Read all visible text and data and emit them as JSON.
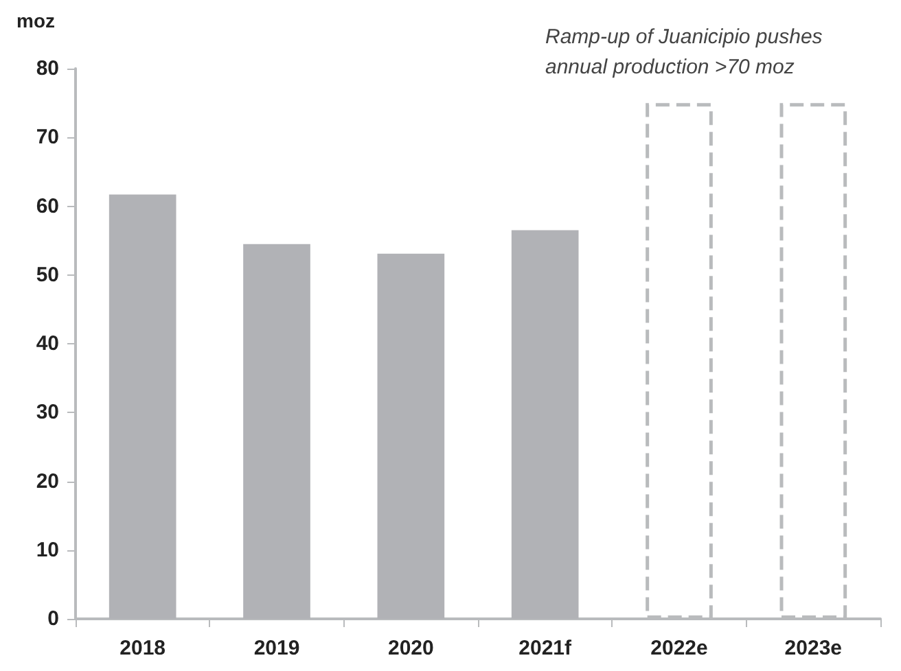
{
  "chart_data": {
    "type": "bar",
    "ylabel": "moz",
    "annotations": [
      "Ramp-up of Juanicipio pushes\nannual production >70 moz"
    ],
    "categories": [
      "2018",
      "2019",
      "2020",
      "2021f",
      "2022e",
      "2023e"
    ],
    "series": [
      {
        "color": "#b1b2b6",
        "values": [
          61.7,
          54.5,
          53.1,
          56.5,
          null,
          null
        ]
      },
      {
        "color": "#b9bbbd",
        "line_style": "dashed",
        "values": [
          null,
          null,
          null,
          null,
          75,
          75
        ]
      }
    ],
    "ylim": [
      0,
      80
    ],
    "yticks": [
      0,
      10,
      20,
      30,
      40,
      50,
      60,
      70,
      80
    ],
    "grid": false
  }
}
